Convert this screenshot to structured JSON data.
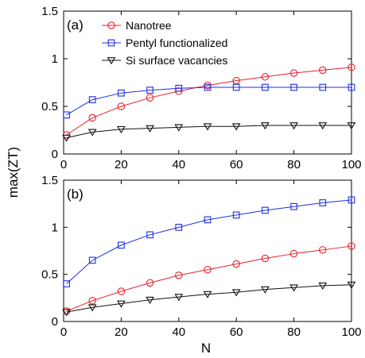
{
  "colors": {
    "nanotree": "#e8202a",
    "pentyl": "#1f2ee0",
    "vacancy": "#111111"
  },
  "chart_data": [
    {
      "type": "line",
      "panel_label": "(a)",
      "x": [
        1,
        10,
        20,
        30,
        40,
        50,
        60,
        70,
        80,
        90,
        100
      ],
      "xlim": [
        0,
        100
      ],
      "ylim": [
        0,
        1.5
      ],
      "xticks": [
        "0",
        "20",
        "40",
        "60",
        "80",
        "100"
      ],
      "yticks": [
        "0",
        "0.5",
        "1",
        "1.5"
      ],
      "legend_position": "top-center",
      "series": [
        {
          "name": "Nanotree",
          "marker": "circle",
          "color": "#e8202a",
          "values": [
            0.2,
            0.38,
            0.5,
            0.59,
            0.66,
            0.72,
            0.77,
            0.81,
            0.85,
            0.88,
            0.91
          ]
        },
        {
          "name": "Pentyl functionalized",
          "marker": "square",
          "color": "#1f2ee0",
          "values": [
            0.41,
            0.57,
            0.64,
            0.67,
            0.69,
            0.7,
            0.7,
            0.7,
            0.7,
            0.7,
            0.7
          ]
        },
        {
          "name": "Si surface vacancies",
          "marker": "triangle-down",
          "color": "#111111",
          "values": [
            0.17,
            0.23,
            0.26,
            0.27,
            0.28,
            0.29,
            0.29,
            0.3,
            0.3,
            0.3,
            0.3
          ]
        }
      ]
    },
    {
      "type": "line",
      "panel_label": "(b)",
      "x": [
        1,
        10,
        20,
        30,
        40,
        50,
        60,
        70,
        80,
        90,
        100
      ],
      "xlim": [
        0,
        100
      ],
      "ylim": [
        0,
        1.5
      ],
      "xticks": [
        "0",
        "20",
        "40",
        "60",
        "80",
        "100"
      ],
      "yticks": [
        "0",
        "0.5",
        "1",
        "1.5"
      ],
      "series": [
        {
          "name": "Nanotree",
          "marker": "circle",
          "color": "#e8202a",
          "values": [
            0.11,
            0.22,
            0.32,
            0.41,
            0.49,
            0.55,
            0.61,
            0.67,
            0.72,
            0.76,
            0.8
          ]
        },
        {
          "name": "Pentyl functionalized",
          "marker": "square",
          "color": "#1f2ee0",
          "values": [
            0.4,
            0.65,
            0.81,
            0.92,
            1.0,
            1.08,
            1.13,
            1.18,
            1.22,
            1.26,
            1.29
          ]
        },
        {
          "name": "Si surface vacancies",
          "marker": "triangle-down",
          "color": "#111111",
          "values": [
            0.1,
            0.15,
            0.19,
            0.23,
            0.26,
            0.29,
            0.31,
            0.34,
            0.36,
            0.38,
            0.39
          ]
        }
      ]
    }
  ],
  "ylabel": "max(ZT)",
  "xlabel": "N"
}
